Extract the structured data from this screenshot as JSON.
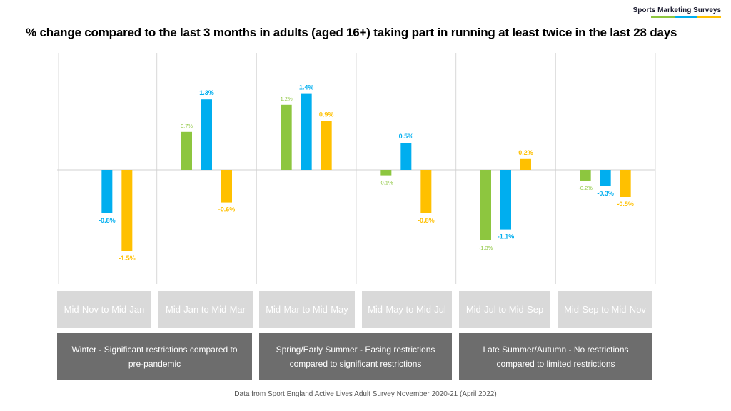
{
  "brand": {
    "name": "Sports Marketing Surveys",
    "underline_colors": [
      "#8dc63f",
      "#00aeef",
      "#ffc000"
    ]
  },
  "title": "% change compared to the last 3 months in adults (aged 16+) taking part in running at least twice in the last 28 days",
  "chart_data": {
    "type": "bar",
    "title": "% change compared to the last 3 months in adults (aged 16+) taking part in running at least twice in the last 28 days",
    "xlabel": "",
    "ylabel": "",
    "categories": [
      "Mid-Nov to Mid-Jan",
      "Mid-Jan to Mid-Mar",
      "Mid-Mar to Mid-May",
      "Mid-May to Mid-Jul",
      "Mid-Jul to Mid-Sep",
      "Mid-Sep to Mid-Nov"
    ],
    "ylim": [
      -2.0,
      2.0
    ],
    "grid": false,
    "legend": "none",
    "series": [
      {
        "color": "#8dc63f",
        "values": [
          null,
          0.7,
          1.2,
          -0.1,
          -1.3,
          -0.2
        ],
        "labels": [
          "",
          "0.7%",
          "1.2%",
          "-0.1%",
          "-1.3%",
          "-0.2%"
        ]
      },
      {
        "color": "#00aeef",
        "values": [
          -0.8,
          1.3,
          1.4,
          0.5,
          -1.1,
          -0.3
        ],
        "labels": [
          "-0.8%",
          "1.3%",
          "1.4%",
          "0.5%",
          "-1.1%",
          "-0.3%"
        ]
      },
      {
        "color": "#ffc000",
        "values": [
          -1.5,
          -0.6,
          0.9,
          -0.8,
          0.2,
          -0.5
        ],
        "labels": [
          "-1.5%",
          "-0.6%",
          "0.9%",
          "-0.8%",
          "0.2%",
          "-0.5%"
        ]
      }
    ]
  },
  "periods": [
    {
      "label": "Winter - Significant restrictions compared to pre-pandemic"
    },
    {
      "label": "Spring/Early Summer - Easing restrictions compared to significant restrictions"
    },
    {
      "label": "Late Summer/Autumn - No restrictions compared to limited restrictions"
    }
  ],
  "footnote": "Data from Sport England Active Lives Adult Survey November 2020-21 (April 2022)"
}
